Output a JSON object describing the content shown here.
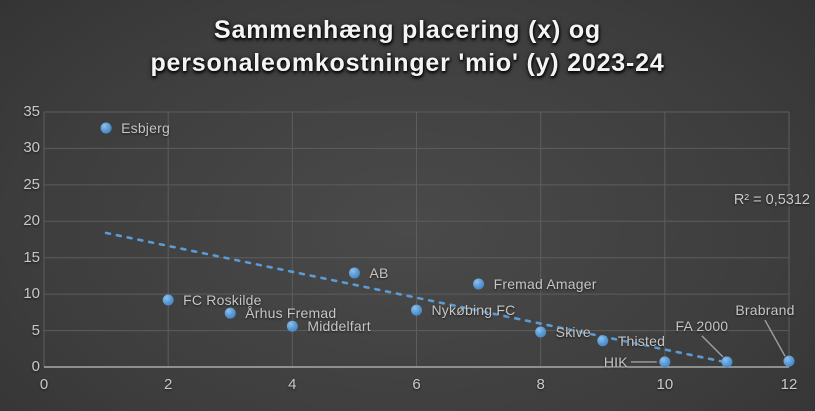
{
  "title": {
    "line1": "Sammenhæng placering (x) og",
    "line2": "personaleomkostninger 'mio' (y) 2023-24"
  },
  "annotation": {
    "r_squared": "R² = 0,5312"
  },
  "chart_data": {
    "type": "scatter",
    "title": "Sammenhæng placering (x) og personaleomkostninger 'mio' (y) 2023-24",
    "xlabel": "",
    "ylabel": "",
    "xlim": [
      0,
      12
    ],
    "ylim": [
      0,
      35
    ],
    "x_ticks": [
      0,
      2,
      4,
      6,
      8,
      10,
      12
    ],
    "y_ticks": [
      0,
      5,
      10,
      15,
      20,
      25,
      30,
      35
    ],
    "grid": true,
    "points": [
      {
        "name": "Esbjerg",
        "x": 1,
        "y": 32.8,
        "label_pos": "right"
      },
      {
        "name": "FC Roskilde",
        "x": 2,
        "y": 9.2,
        "label_pos": "right"
      },
      {
        "name": "Århus Fremad",
        "x": 3,
        "y": 7.4,
        "label_pos": "right"
      },
      {
        "name": "Middelfart",
        "x": 4,
        "y": 5.6,
        "label_pos": "right"
      },
      {
        "name": "AB",
        "x": 5,
        "y": 12.9,
        "label_pos": "right"
      },
      {
        "name": "Nykøbing FC",
        "x": 6,
        "y": 7.8,
        "label_pos": "right"
      },
      {
        "name": "Fremad Amager",
        "x": 7,
        "y": 11.4,
        "label_pos": "right"
      },
      {
        "name": "Skive",
        "x": 8,
        "y": 4.8,
        "label_pos": "right"
      },
      {
        "name": "Thisted",
        "x": 9,
        "y": 3.6,
        "label_pos": "right"
      },
      {
        "name": "HIK",
        "x": 10,
        "y": 0.7,
        "label_pos": "left-leader",
        "label_offset": [
          -37,
          0
        ]
      },
      {
        "name": "FA 2000",
        "x": 11,
        "y": 0.7,
        "label_pos": "above-leader",
        "label_offset": [
          -25,
          -36
        ]
      },
      {
        "name": "Brabrand",
        "x": 12,
        "y": 0.8,
        "label_pos": "above-leader",
        "label_offset": [
          -24,
          -51
        ]
      }
    ],
    "trendline": {
      "style": "dashed",
      "x1": 1,
      "y1": 18.4,
      "x2": 10.9,
      "y2": 0.8,
      "r_squared": "R² = 0,5312"
    },
    "colors": {
      "marker": "#5B9BD5",
      "trendline": "#5B9BD5",
      "gridline": "#5d5d5d",
      "axis_line": "#aaaaaa",
      "leader_line": "#a0a0a0",
      "label_text": "#c6c6c6",
      "title_text": "#f4f4f4"
    }
  }
}
